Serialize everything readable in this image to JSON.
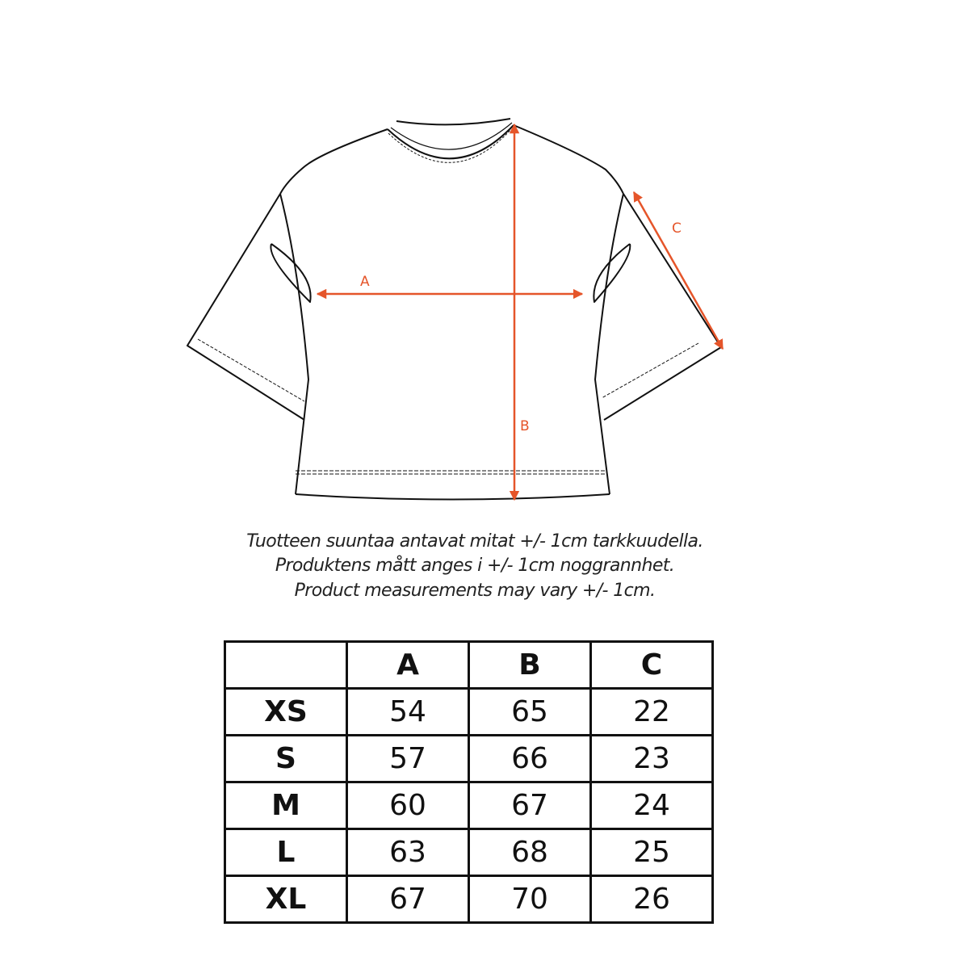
{
  "diagram": {
    "labels": {
      "a": "A",
      "b": "B",
      "c": "C"
    },
    "accent_color": "#e5552a",
    "line_color": "#111111"
  },
  "notes": [
    "Tuotteen suuntaa antavat mitat +/- 1cm tarkkuudella.",
    "Produktens mått anges i +/- 1cm noggrannhet.",
    "Product measurements may vary +/- 1cm."
  ],
  "table": {
    "headers": [
      "",
      "A",
      "B",
      "C"
    ],
    "rows": [
      {
        "size": "XS",
        "a": "54",
        "b": "65",
        "c": "22"
      },
      {
        "size": "S",
        "a": "57",
        "b": "66",
        "c": "23"
      },
      {
        "size": "M",
        "a": "60",
        "b": "67",
        "c": "24"
      },
      {
        "size": "L",
        "a": "63",
        "b": "68",
        "c": "25"
      },
      {
        "size": "XL",
        "a": "67",
        "b": "70",
        "c": "26"
      }
    ]
  }
}
